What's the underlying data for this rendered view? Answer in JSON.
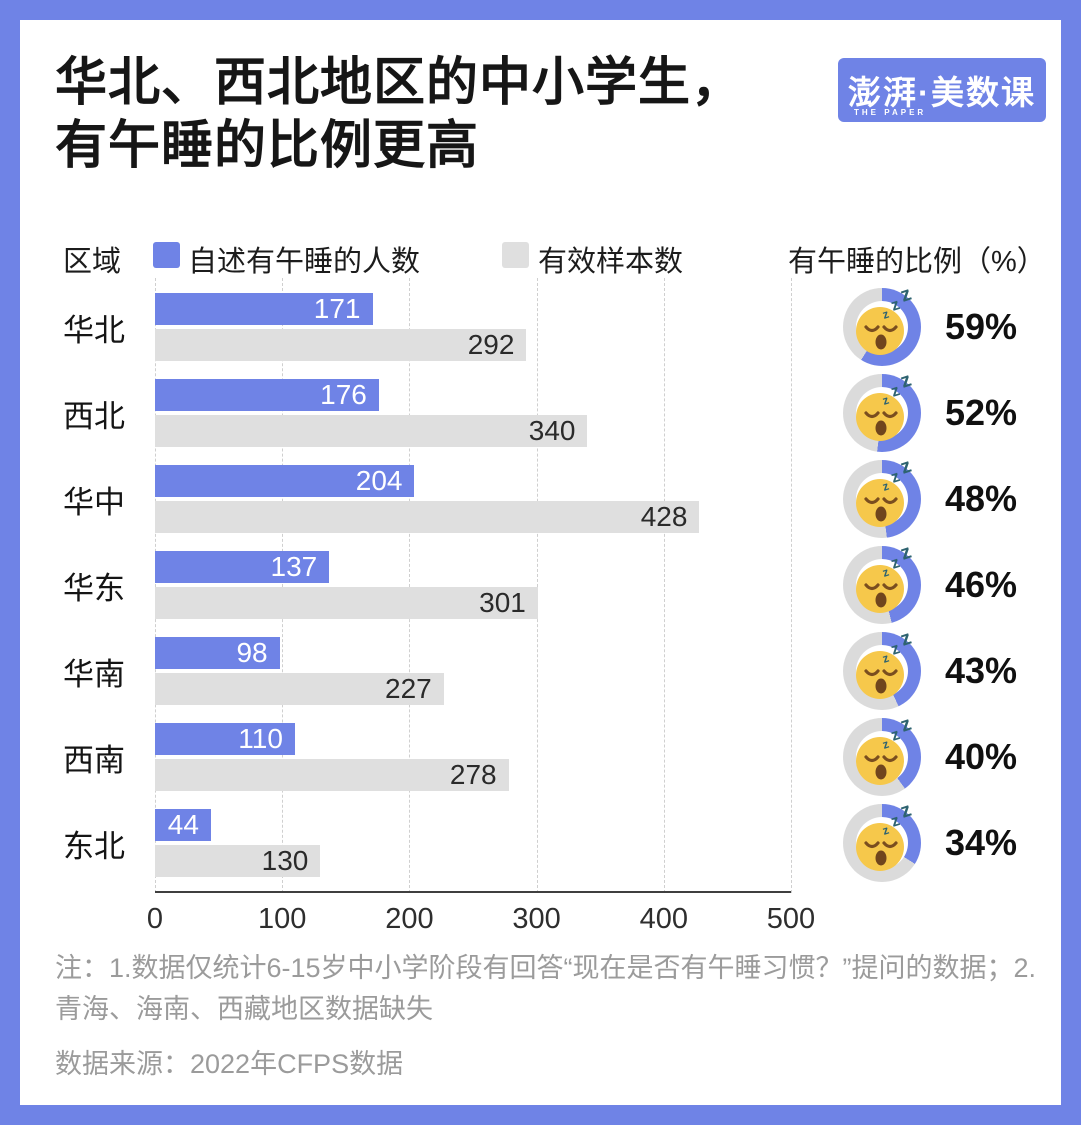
{
  "colors": {
    "accent_blue": "#6F83E6",
    "bar_gray": "#DFDFDF",
    "donut_gray": "#DBDBDB",
    "face_yellow": "#F6C84B",
    "face_feature_brown": "#7A4E1F",
    "mouth_brown": "#70451D",
    "zzz_teal": "#2E6370",
    "note_gray": "#9B9B9B"
  },
  "header": {
    "title_line1": "华北、西北地区的中小学生，",
    "title_line2": "有午睡的比例更高",
    "logo": {
      "text": "澎湃·美数课",
      "subtext": "THE PAPER"
    }
  },
  "legend": {
    "axis_label": "区域",
    "series1_label": "自述有午睡的人数",
    "series2_label": "有效样本数",
    "right_header": "有午睡的比例（%）",
    "series1_color": "#6F83E6",
    "series2_color": "#DFDFDF"
  },
  "chart_data": {
    "type": "bar",
    "orientation": "horizontal",
    "title": "华北、西北地区的中小学生，有午睡的比例更高",
    "categories": [
      "华北",
      "西北",
      "华中",
      "华东",
      "华南",
      "西南",
      "东北"
    ],
    "series": [
      {
        "name": "自述有午睡的人数",
        "color": "#6F83E6",
        "values": [
          171,
          176,
          204,
          137,
          98,
          110,
          44
        ]
      },
      {
        "name": "有效样本数",
        "color": "#DFDFDF",
        "values": [
          292,
          340,
          428,
          301,
          227,
          278,
          130
        ]
      }
    ],
    "percentages": [
      59,
      52,
      48,
      46,
      43,
      40,
      34
    ],
    "percent_header": "有午睡的比例（%）",
    "xlim": [
      0,
      500
    ],
    "x_ticks": [
      0,
      100,
      200,
      300,
      400,
      500
    ],
    "grid": "vertical-dashed",
    "legend_position": "top"
  },
  "notes": {
    "note": "注：1.数据仅统计6-15岁中小学阶段有回答“现在是否有午睡习惯？”提问的数据；2.青海、海南、西藏地区数据缺失",
    "source": "数据来源：2022年CFPS数据"
  }
}
